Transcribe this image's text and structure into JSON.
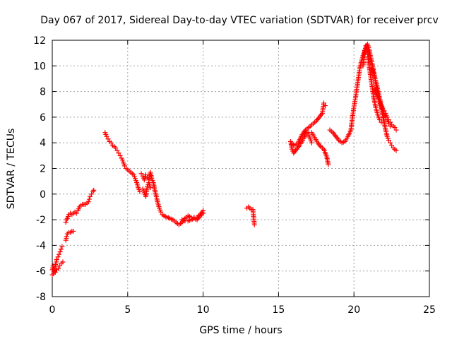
{
  "chart_data": {
    "type": "scatter",
    "title": "Day 067 of 2017, Sidereal Day-to-day VTEC variation (SDTVAR) for receiver prcv",
    "xlabel": "GPS time / hours",
    "ylabel": "SDTVAR / TECUs",
    "xlim": [
      0,
      25
    ],
    "ylim": [
      -8,
      12
    ],
    "xticks": [
      0,
      5,
      10,
      15,
      20,
      25
    ],
    "yticks": [
      -8,
      -6,
      -4,
      -2,
      0,
      2,
      4,
      6,
      8,
      10,
      12
    ],
    "xtick_labels": [
      "0",
      "5",
      "10",
      "15",
      "20",
      "25"
    ],
    "ytick_labels": [
      "-8",
      "-6",
      "-4",
      "-2",
      "0",
      "2",
      "4",
      "6",
      "8",
      "10",
      "12"
    ],
    "grid": true,
    "marker": "+",
    "color": "#ff0000",
    "series": [
      {
        "name": "SDTVAR",
        "segments": [
          [
            [
              0.0,
              -6.3
            ],
            [
              0.08,
              -6.2
            ],
            [
              0.15,
              -5.9
            ],
            [
              0.22,
              -5.5
            ],
            [
              0.3,
              -5.1
            ],
            [
              0.38,
              -4.9
            ],
            [
              0.45,
              -4.7
            ],
            [
              0.52,
              -4.5
            ],
            [
              0.58,
              -4.3
            ],
            [
              0.65,
              -4.1
            ]
          ],
          [
            [
              0.0,
              -5.9
            ],
            [
              0.05,
              -5.6
            ],
            [
              0.1,
              -5.8
            ],
            [
              0.2,
              -6.1
            ],
            [
              0.3,
              -5.9
            ],
            [
              0.4,
              -5.8
            ],
            [
              0.5,
              -5.6
            ],
            [
              0.6,
              -5.4
            ],
            [
              0.7,
              -5.3
            ]
          ],
          [
            [
              0.9,
              -3.6
            ],
            [
              0.95,
              -3.3
            ],
            [
              1.0,
              -3.1
            ],
            [
              1.1,
              -3.0
            ],
            [
              1.2,
              -3.0
            ],
            [
              1.3,
              -2.9
            ],
            [
              1.4,
              -2.9
            ]
          ],
          [
            [
              0.9,
              -2.2
            ],
            [
              0.95,
              -2.0
            ],
            [
              1.0,
              -1.9
            ],
            [
              1.1,
              -1.6
            ],
            [
              1.2,
              -1.5
            ],
            [
              1.3,
              -1.6
            ],
            [
              1.4,
              -1.5
            ],
            [
              1.5,
              -1.4
            ],
            [
              1.6,
              -1.5
            ],
            [
              1.7,
              -1.3
            ],
            [
              1.8,
              -1.0
            ],
            [
              1.9,
              -0.9
            ],
            [
              2.0,
              -0.8
            ],
            [
              2.1,
              -0.8
            ],
            [
              2.2,
              -0.8
            ],
            [
              2.3,
              -0.7
            ],
            [
              2.4,
              -0.6
            ],
            [
              2.45,
              -0.4
            ],
            [
              2.5,
              -0.2
            ],
            [
              2.6,
              0.0
            ],
            [
              2.7,
              0.2
            ],
            [
              2.75,
              0.3
            ]
          ],
          [
            [
              3.5,
              4.8
            ],
            [
              3.6,
              4.5
            ],
            [
              3.7,
              4.3
            ],
            [
              3.8,
              4.1
            ],
            [
              3.9,
              4.0
            ],
            [
              4.0,
              3.8
            ],
            [
              4.1,
              3.7
            ],
            [
              4.2,
              3.6
            ],
            [
              4.3,
              3.4
            ],
            [
              4.4,
              3.2
            ],
            [
              4.5,
              3.0
            ],
            [
              4.6,
              2.8
            ],
            [
              4.7,
              2.5
            ],
            [
              4.8,
              2.2
            ],
            [
              4.9,
              2.0
            ],
            [
              5.0,
              1.9
            ],
            [
              5.1,
              1.8
            ],
            [
              5.2,
              1.7
            ],
            [
              5.3,
              1.6
            ],
            [
              5.4,
              1.5
            ],
            [
              5.5,
              1.2
            ],
            [
              5.6,
              0.9
            ],
            [
              5.7,
              0.5
            ],
            [
              5.8,
              0.2
            ]
          ],
          [
            [
              5.9,
              1.6
            ],
            [
              6.0,
              1.4
            ],
            [
              6.1,
              1.1
            ],
            [
              6.2,
              1.5
            ],
            [
              6.3,
              1.3
            ],
            [
              6.4,
              1.1
            ],
            [
              6.5,
              1.7
            ],
            [
              6.6,
              1.2
            ],
            [
              6.7,
              0.9
            ],
            [
              6.8,
              0.3
            ],
            [
              6.9,
              -0.2
            ],
            [
              7.0,
              -0.7
            ],
            [
              7.1,
              -1.1
            ],
            [
              7.2,
              -1.4
            ],
            [
              7.3,
              -1.6
            ],
            [
              7.4,
              -1.7
            ],
            [
              7.6,
              -1.8
            ],
            [
              7.8,
              -1.9
            ],
            [
              8.0,
              -2.0
            ],
            [
              8.2,
              -2.2
            ],
            [
              8.4,
              -2.4
            ],
            [
              8.6,
              -2.2
            ],
            [
              8.8,
              -1.9
            ],
            [
              9.0,
              -1.7
            ],
            [
              9.2,
              -1.8
            ],
            [
              9.4,
              -1.8
            ],
            [
              9.6,
              -1.8
            ],
            [
              9.8,
              -1.6
            ],
            [
              10.0,
              -1.3
            ]
          ],
          [
            [
              6.0,
              0.4
            ],
            [
              6.1,
              0.1
            ],
            [
              6.2,
              -0.2
            ],
            [
              6.3,
              0.6
            ],
            [
              6.4,
              0.9
            ],
            [
              6.5,
              0.5
            ]
          ],
          [
            [
              8.6,
              -2.0
            ],
            [
              8.8,
              -2.1
            ],
            [
              9.0,
              -2.1
            ],
            [
              9.2,
              -2.0
            ],
            [
              9.4,
              -1.9
            ],
            [
              9.6,
              -2.0
            ],
            [
              9.8,
              -1.7
            ],
            [
              10.0,
              -1.5
            ]
          ],
          [
            [
              12.9,
              -1.1
            ],
            [
              13.0,
              -1.0
            ],
            [
              13.1,
              -1.1
            ],
            [
              13.2,
              -1.2
            ],
            [
              13.3,
              -1.2
            ],
            [
              13.4,
              -2.4
            ]
          ],
          [
            [
              15.8,
              4.1
            ],
            [
              15.9,
              3.5
            ],
            [
              16.0,
              3.2
            ],
            [
              16.2,
              3.5
            ],
            [
              16.4,
              3.8
            ],
            [
              16.6,
              4.2
            ],
            [
              16.8,
              4.6
            ],
            [
              17.0,
              4.8
            ],
            [
              17.2,
              4.8
            ],
            [
              17.4,
              4.4
            ],
            [
              17.6,
              4.0
            ],
            [
              17.8,
              3.7
            ],
            [
              18.0,
              3.5
            ],
            [
              18.2,
              2.9
            ],
            [
              18.3,
              2.3
            ]
          ],
          [
            [
              15.9,
              3.9
            ],
            [
              16.1,
              3.8
            ],
            [
              16.3,
              4.0
            ],
            [
              16.5,
              4.5
            ],
            [
              16.7,
              4.9
            ],
            [
              16.9,
              5.1
            ],
            [
              17.1,
              5.3
            ],
            [
              17.3,
              5.5
            ],
            [
              17.5,
              5.7
            ],
            [
              17.7,
              6.0
            ],
            [
              17.9,
              6.3
            ],
            [
              18.0,
              7.1
            ],
            [
              18.1,
              6.9
            ]
          ],
          [
            [
              16.6,
              4.5
            ],
            [
              16.7,
              4.7
            ],
            [
              16.8,
              5.0
            ],
            [
              16.9,
              4.8
            ],
            [
              17.0,
              4.6
            ],
            [
              17.1,
              4.3
            ],
            [
              17.2,
              4.0
            ]
          ],
          [
            [
              18.4,
              5.0
            ],
            [
              18.6,
              4.8
            ],
            [
              18.8,
              4.5
            ],
            [
              19.0,
              4.2
            ],
            [
              19.2,
              4.0
            ],
            [
              19.4,
              4.1
            ],
            [
              19.6,
              4.5
            ],
            [
              19.8,
              5.0
            ],
            [
              19.9,
              6.0
            ],
            [
              20.0,
              6.8
            ],
            [
              20.1,
              7.5
            ],
            [
              20.2,
              8.3
            ],
            [
              20.3,
              9.1
            ],
            [
              20.4,
              9.9
            ],
            [
              20.5,
              10.4
            ],
            [
              20.6,
              10.8
            ],
            [
              20.7,
              11.2
            ],
            [
              20.8,
              11.4
            ],
            [
              20.9,
              11.7
            ],
            [
              21.0,
              11.3
            ],
            [
              21.1,
              10.7
            ],
            [
              21.2,
              10.2
            ],
            [
              21.3,
              9.6
            ],
            [
              21.4,
              9.0
            ],
            [
              21.5,
              8.2
            ],
            [
              21.6,
              7.6
            ],
            [
              21.7,
              7.2
            ],
            [
              21.8,
              6.8
            ],
            [
              21.9,
              6.2
            ],
            [
              22.0,
              5.6
            ],
            [
              22.1,
              5.0
            ],
            [
              22.2,
              4.5
            ],
            [
              22.3,
              4.2
            ],
            [
              22.4,
              4.0
            ],
            [
              22.5,
              3.8
            ],
            [
              22.6,
              3.6
            ],
            [
              22.7,
              3.5
            ],
            [
              22.8,
              3.4
            ]
          ],
          [
            [
              20.6,
              10.0
            ],
            [
              20.7,
              11.0
            ],
            [
              20.8,
              11.6
            ],
            [
              20.9,
              11.0
            ],
            [
              21.0,
              10.0
            ],
            [
              21.1,
              9.2
            ],
            [
              21.2,
              8.4
            ],
            [
              21.3,
              7.6
            ],
            [
              21.4,
              7.0
            ],
            [
              21.5,
              6.5
            ],
            [
              21.6,
              6.1
            ],
            [
              21.7,
              5.8
            ],
            [
              21.8,
              5.6
            ]
          ],
          [
            [
              21.2,
              9.8
            ],
            [
              21.3,
              9.4
            ],
            [
              21.4,
              9.0
            ],
            [
              21.5,
              8.6
            ],
            [
              21.6,
              8.0
            ],
            [
              21.7,
              7.5
            ],
            [
              21.8,
              7.0
            ],
            [
              21.9,
              6.7
            ],
            [
              22.0,
              6.5
            ],
            [
              22.1,
              6.3
            ],
            [
              22.2,
              6.0
            ],
            [
              22.3,
              5.8
            ],
            [
              22.4,
              5.6
            ],
            [
              22.5,
              5.4
            ],
            [
              22.6,
              5.3
            ],
            [
              22.7,
              5.2
            ],
            [
              22.8,
              5.0
            ]
          ],
          [
            [
              21.4,
              8.2
            ],
            [
              21.5,
              7.8
            ],
            [
              21.6,
              7.5
            ],
            [
              21.7,
              7.2
            ],
            [
              21.8,
              6.9
            ],
            [
              21.9,
              6.6
            ],
            [
              22.0,
              6.3
            ],
            [
              22.1,
              6.0
            ],
            [
              22.2,
              5.8
            ],
            [
              22.3,
              5.5
            ],
            [
              22.4,
              5.3
            ]
          ]
        ]
      }
    ]
  }
}
